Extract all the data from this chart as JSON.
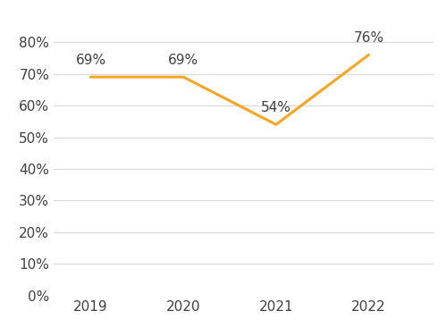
{
  "years": [
    2019,
    2020,
    2021,
    2022
  ],
  "values": [
    0.69,
    0.69,
    0.54,
    0.76
  ],
  "labels": [
    "69%",
    "69%",
    "54%",
    "76%"
  ],
  "line_color": "#F5A623",
  "line_width": 2.2,
  "yticks": [
    0.0,
    0.1,
    0.2,
    0.3,
    0.4,
    0.5,
    0.6,
    0.7,
    0.8
  ],
  "ylim": [
    0.0,
    0.88
  ],
  "background_color": "#ffffff",
  "grid_color": "#d9d9d9",
  "label_fontsize": 11,
  "tick_fontsize": 11,
  "label_color": "#404040"
}
